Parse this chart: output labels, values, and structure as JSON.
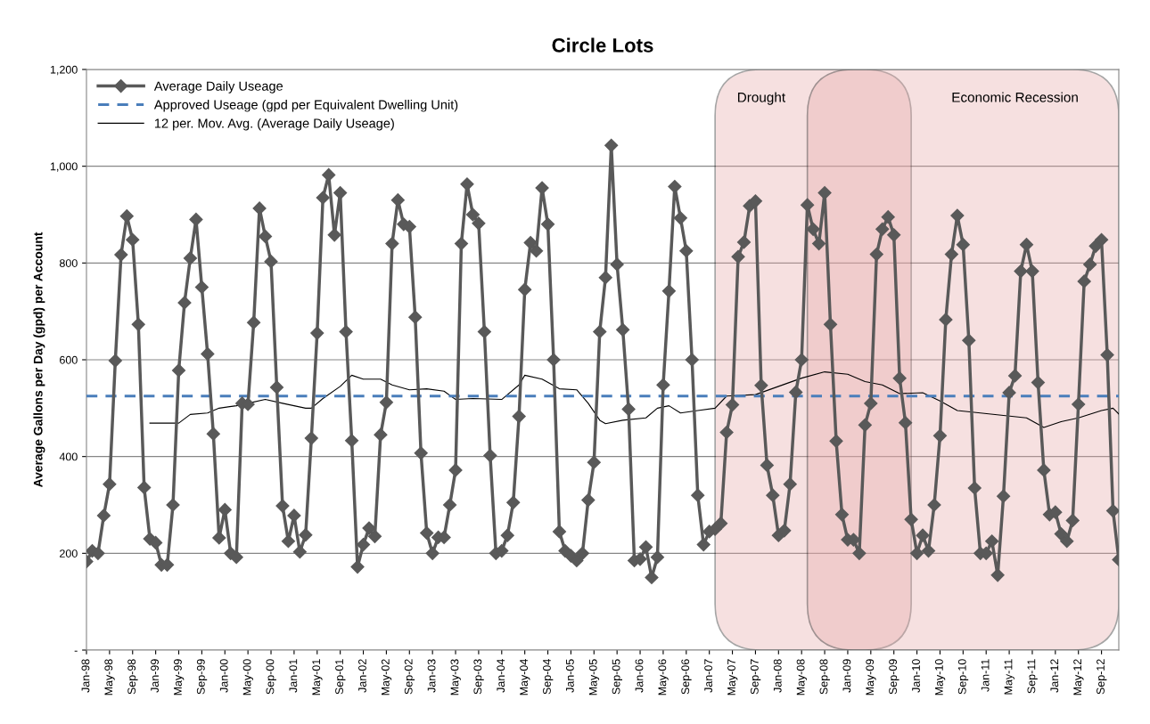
{
  "chart_data": {
    "type": "line",
    "title": "Circle Lots",
    "ylabel": "Average Gallons per Day (gpd) per Account",
    "x": [
      "1998-01",
      "1998-02",
      "1998-03",
      "1998-04",
      "1998-05",
      "1998-06",
      "1998-07",
      "1998-08",
      "1998-09",
      "1998-10",
      "1998-11",
      "1998-12",
      "1999-01",
      "1999-02",
      "1999-03",
      "1999-04",
      "1999-05",
      "1999-06",
      "1999-07",
      "1999-08",
      "1999-09",
      "1999-10",
      "1999-11",
      "1999-12",
      "2000-01",
      "2000-02",
      "2000-03",
      "2000-04",
      "2000-05",
      "2000-06",
      "2000-07",
      "2000-08",
      "2000-09",
      "2000-10",
      "2000-11",
      "2000-12",
      "2001-01",
      "2001-02",
      "2001-03",
      "2001-04",
      "2001-05",
      "2001-06",
      "2001-07",
      "2001-08",
      "2001-09",
      "2001-10",
      "2001-11",
      "2001-12",
      "2002-01",
      "2002-02",
      "2002-03",
      "2002-04",
      "2002-05",
      "2002-06",
      "2002-07",
      "2002-08",
      "2002-09",
      "2002-10",
      "2002-11",
      "2002-12",
      "2003-01",
      "2003-02",
      "2003-03",
      "2003-04",
      "2003-05",
      "2003-06",
      "2003-07",
      "2003-08",
      "2003-09",
      "2003-10",
      "2003-11",
      "2003-12",
      "2004-01",
      "2004-02",
      "2004-03",
      "2004-04",
      "2004-05",
      "2004-06",
      "2004-07",
      "2004-08",
      "2004-09",
      "2004-10",
      "2004-11",
      "2004-12",
      "2005-01",
      "2005-02",
      "2005-03",
      "2005-04",
      "2005-05",
      "2005-06",
      "2005-07",
      "2005-08",
      "2005-09",
      "2005-10",
      "2005-11",
      "2005-12",
      "2006-01",
      "2006-02",
      "2006-03",
      "2006-04",
      "2006-05",
      "2006-06",
      "2006-07",
      "2006-08",
      "2006-09",
      "2006-10",
      "2006-11",
      "2006-12",
      "2007-01",
      "2007-02",
      "2007-03",
      "2007-04",
      "2007-05",
      "2007-06",
      "2007-07",
      "2007-08",
      "2007-09",
      "2007-10",
      "2007-11",
      "2007-12",
      "2008-01",
      "2008-02",
      "2008-03",
      "2008-04",
      "2008-05",
      "2008-06",
      "2008-07",
      "2008-08",
      "2008-09",
      "2008-10",
      "2008-11",
      "2008-12",
      "2009-01",
      "2009-02",
      "2009-03",
      "2009-04",
      "2009-05",
      "2009-06",
      "2009-07",
      "2009-08",
      "2009-09",
      "2009-10",
      "2009-11",
      "2009-12",
      "2010-01",
      "2010-02",
      "2010-03",
      "2010-04",
      "2010-05",
      "2010-06",
      "2010-07",
      "2010-08",
      "2010-09",
      "2010-10",
      "2010-11",
      "2010-12",
      "2011-01",
      "2011-02",
      "2011-03",
      "2011-04",
      "2011-05",
      "2011-06",
      "2011-07",
      "2011-08",
      "2011-09",
      "2011-10",
      "2011-11",
      "2011-12",
      "2012-01",
      "2012-02",
      "2012-03",
      "2012-04",
      "2012-05",
      "2012-06",
      "2012-07",
      "2012-08",
      "2012-09",
      "2012-10",
      "2012-11",
      "2012-12"
    ],
    "series": [
      {
        "name": "Average Daily Useage",
        "color": "#595959",
        "marker": "diamond",
        "values": [
          183,
          205,
          200,
          278,
          343,
          598,
          817,
          897,
          848,
          673,
          336,
          230,
          222,
          176,
          176,
          300,
          578,
          718,
          810,
          890,
          750,
          612,
          447,
          232,
          290,
          200,
          192,
          510,
          508,
          677,
          913,
          855,
          803,
          543,
          298,
          225,
          278,
          203,
          238,
          438,
          655,
          935,
          982,
          858,
          945,
          658,
          433,
          172,
          218,
          252,
          235,
          445,
          512,
          840,
          930,
          880,
          875,
          688,
          407,
          242,
          200,
          233,
          233,
          300,
          372,
          840,
          963,
          900,
          882,
          658,
          402,
          200,
          205,
          237,
          305,
          483,
          745,
          842,
          825,
          955,
          880,
          600,
          245,
          205,
          195,
          185,
          200,
          310,
          388,
          658,
          770,
          1043,
          797,
          662,
          498,
          185,
          188,
          213,
          150,
          192,
          548,
          742,
          958,
          893,
          825,
          600,
          320,
          218,
          245,
          250,
          262,
          450,
          507,
          813,
          843,
          918,
          928,
          547,
          382,
          320,
          237,
          247,
          343,
          533,
          600,
          920,
          870,
          840,
          945,
          673,
          432,
          280,
          228,
          228,
          200,
          465,
          510,
          818,
          870,
          895,
          858,
          562,
          470,
          270,
          200,
          237,
          205,
          300,
          443,
          683,
          818,
          898,
          838,
          640,
          335,
          200,
          200,
          225,
          155,
          318,
          532,
          567,
          783,
          838,
          783,
          553,
          372,
          280,
          285,
          240,
          225,
          268,
          508,
          762,
          797,
          835,
          848,
          610,
          288,
          187
        ]
      },
      {
        "name": "12 per. Mov. Avg. (Average Daily Useage)",
        "color": "#000000",
        "marker": "none",
        "x": [
          "1998-12",
          "1999-05",
          "1999-07",
          "1999-10",
          "1999-12",
          "2000-03",
          "2000-05",
          "2000-08",
          "2000-11",
          "2001-03",
          "2001-04",
          "2001-06",
          "2001-09",
          "2001-11",
          "2002-01",
          "2002-04",
          "2002-06",
          "2002-09",
          "2002-12",
          "2003-03",
          "2003-05",
          "2003-08",
          "2004-01",
          "2004-04",
          "2004-05",
          "2004-08",
          "2004-11",
          "2005-02",
          "2005-04",
          "2005-06",
          "2005-07",
          "2005-10",
          "2006-02",
          "2006-04",
          "2006-06",
          "2006-08",
          "2006-11",
          "2007-02",
          "2007-04",
          "2007-09",
          "2008-01",
          "2008-05",
          "2008-09",
          "2009-01",
          "2009-04",
          "2009-07",
          "2009-10",
          "2010-02",
          "2010-05",
          "2010-08",
          "2010-12",
          "2011-04",
          "2011-08",
          "2011-11",
          "2012-02",
          "2012-05",
          "2012-09",
          "2012-11",
          "2012-12"
        ],
        "values": [
          469,
          469,
          487,
          490,
          500,
          505,
          510,
          518,
          510,
          500,
          500,
          520,
          545,
          568,
          560,
          560,
          548,
          538,
          540,
          535,
          518,
          520,
          518,
          548,
          568,
          560,
          540,
          538,
          510,
          475,
          468,
          475,
          480,
          500,
          505,
          490,
          495,
          500,
          525,
          528,
          545,
          562,
          575,
          570,
          555,
          548,
          530,
          532,
          515,
          495,
          490,
          485,
          480,
          460,
          472,
          480,
          495,
          500,
          488
        ]
      }
    ],
    "ref_lines": [
      {
        "axis": "y",
        "value": 525,
        "label": "Approved Useage (gpd per Equivalent Dwelling Unit)",
        "color": "#4a7ebb",
        "line_style": "dashed"
      }
    ],
    "bands": [
      {
        "axis": "x",
        "from": "2007-02",
        "to": "2009-12",
        "label": "Drought",
        "color": "#e6a8a8"
      },
      {
        "axis": "x",
        "from": "2008-06",
        "to": "2012-12",
        "label": "Economic Recession",
        "color": "#e6a8a8"
      }
    ],
    "xlim": [
      "1998-01",
      "2012-12"
    ],
    "xticks": [
      {
        "value": "1998-01",
        "label": "Jan-98"
      },
      {
        "value": "1998-05",
        "label": "May-98"
      },
      {
        "value": "1998-09",
        "label": "Sep-98"
      },
      {
        "value": "1999-01",
        "label": "Jan-99"
      },
      {
        "value": "1999-05",
        "label": "May-99"
      },
      {
        "value": "1999-09",
        "label": "Sep-99"
      },
      {
        "value": "2000-01",
        "label": "Jan-00"
      },
      {
        "value": "2000-05",
        "label": "May-00"
      },
      {
        "value": "2000-09",
        "label": "Sep-00"
      },
      {
        "value": "2001-01",
        "label": "Jan-01"
      },
      {
        "value": "2001-05",
        "label": "May-01"
      },
      {
        "value": "2001-09",
        "label": "Sep-01"
      },
      {
        "value": "2002-01",
        "label": "Jan-02"
      },
      {
        "value": "2002-05",
        "label": "May-02"
      },
      {
        "value": "2002-09",
        "label": "Sep-02"
      },
      {
        "value": "2003-01",
        "label": "Jan-03"
      },
      {
        "value": "2003-05",
        "label": "May-03"
      },
      {
        "value": "2003-09",
        "label": "Sep-03"
      },
      {
        "value": "2004-01",
        "label": "Jan-04"
      },
      {
        "value": "2004-05",
        "label": "May-04"
      },
      {
        "value": "2004-09",
        "label": "Sep-04"
      },
      {
        "value": "2005-01",
        "label": "Jan-05"
      },
      {
        "value": "2005-05",
        "label": "May-05"
      },
      {
        "value": "2005-09",
        "label": "Sep-05"
      },
      {
        "value": "2006-01",
        "label": "Jan-06"
      },
      {
        "value": "2006-05",
        "label": "May-06"
      },
      {
        "value": "2006-09",
        "label": "Sep-06"
      },
      {
        "value": "2007-01",
        "label": "Jan-07"
      },
      {
        "value": "2007-05",
        "label": "May-07"
      },
      {
        "value": "2007-09",
        "label": "Sep-07"
      },
      {
        "value": "2008-01",
        "label": "Jan-08"
      },
      {
        "value": "2008-05",
        "label": "May-08"
      },
      {
        "value": "2008-09",
        "label": "Sep-08"
      },
      {
        "value": "2009-01",
        "label": "Jan-09"
      },
      {
        "value": "2009-05",
        "label": "May-09"
      },
      {
        "value": "2009-09",
        "label": "Sep-09"
      },
      {
        "value": "2010-01",
        "label": "Jan-10"
      },
      {
        "value": "2010-05",
        "label": "May-10"
      },
      {
        "value": "2010-09",
        "label": "Sep-10"
      },
      {
        "value": "2011-01",
        "label": "Jan-11"
      },
      {
        "value": "2011-05",
        "label": "May-11"
      },
      {
        "value": "2011-09",
        "label": "Sep-11"
      },
      {
        "value": "2012-01",
        "label": "Jan-12"
      },
      {
        "value": "2012-05",
        "label": "May-12"
      },
      {
        "value": "2012-09",
        "label": "Sep-12"
      }
    ],
    "ylim": [
      0,
      1200
    ],
    "yticks": [
      {
        "value": 0,
        "label": "-"
      },
      200,
      400,
      600,
      800,
      {
        "value": 1000,
        "label": "1,000"
      },
      {
        "value": 1200,
        "label": "1,200"
      }
    ],
    "grid": "y",
    "legend": "top left",
    "line_style": "solid"
  }
}
